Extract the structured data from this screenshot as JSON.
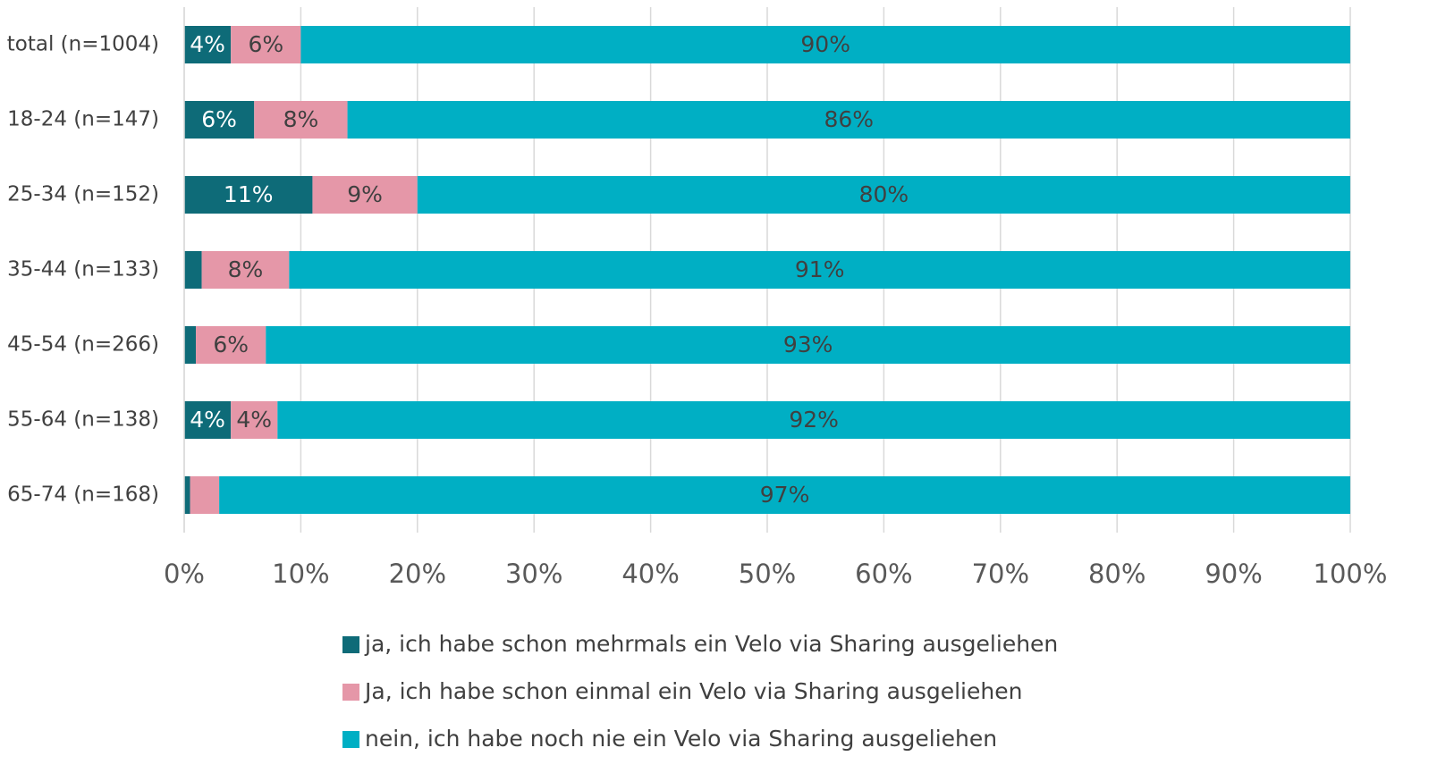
{
  "chart_data": {
    "type": "stacked-bar",
    "orientation": "horizontal",
    "categories": [
      "total (n=1004)",
      "18-24 (n=147)",
      "25-34 (n=152)",
      "35-44 (n=133)",
      "45-54 (n=266)",
      "55-64 (n=138)",
      "65-74 (n=168)"
    ],
    "series": [
      {
        "name": "ja, ich habe schon mehrmals ein Velo via Sharing ausgeliehen",
        "color": "#0e6b78",
        "values": [
          4,
          6,
          11,
          1.5,
          1,
          4,
          0.5
        ],
        "value_labels": [
          "4%",
          "6%",
          "11%",
          null,
          null,
          "4%",
          null
        ]
      },
      {
        "name": "Ja, ich habe schon einmal ein Velo via Sharing ausgeliehen",
        "color": "#e597a8",
        "values": [
          6,
          8,
          9,
          7.5,
          6,
          4,
          2.5
        ],
        "value_labels": [
          "6%",
          "8%",
          "9%",
          "8%",
          "6%",
          "4%",
          null
        ]
      },
      {
        "name": "nein, ich habe noch nie ein Velo via Sharing ausgeliehen",
        "color": "#00afc4",
        "values": [
          90,
          86,
          80,
          91,
          93,
          92,
          97
        ],
        "value_labels": [
          "90%",
          "86%",
          "80%",
          "91%",
          "93%",
          "92%",
          "97%"
        ]
      }
    ],
    "xlim": [
      0,
      100
    ],
    "xticks": [
      {
        "value": 0,
        "label": "0%"
      },
      {
        "value": 10,
        "label": "10%"
      },
      {
        "value": 20,
        "label": "20%"
      },
      {
        "value": 30,
        "label": "30%"
      },
      {
        "value": 40,
        "label": "40%"
      },
      {
        "value": 50,
        "label": "50%"
      },
      {
        "value": 60,
        "label": "60%"
      },
      {
        "value": 70,
        "label": "70%"
      },
      {
        "value": 80,
        "label": "80%"
      },
      {
        "value": 90,
        "label": "90%"
      },
      {
        "value": 100,
        "label": "100%"
      }
    ],
    "grid": true,
    "legend": "bottom"
  }
}
